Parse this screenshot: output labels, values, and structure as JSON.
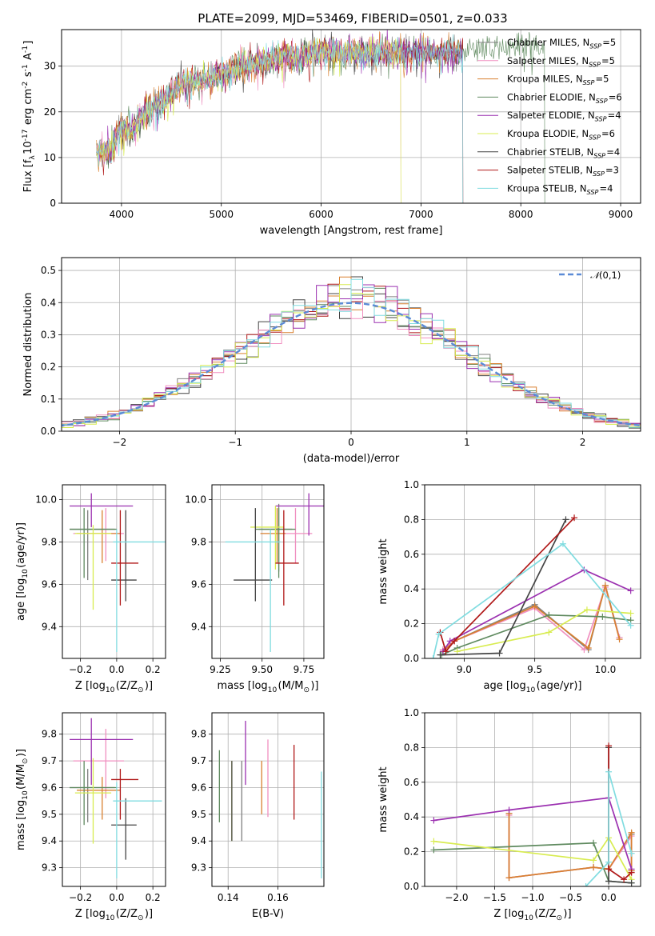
{
  "title": "PLATE=2099, MJD=53469, FIBERID=0501, z=0.033",
  "colors": [
    "#7f7f7f",
    "#e377c2",
    "#ff7f0e",
    "#2ca02c",
    "#9467bd",
    "#bcbd22",
    "#555555",
    "#d62728",
    "#17becf"
  ],
  "models": [
    {
      "name": "Chabrier MILES, N$_{SSP}$=5",
      "color": "#808080"
    },
    {
      "name": "Salpeter MILES, N$_{SSP}$=5",
      "color": "#f08fc0"
    },
    {
      "name": "Kroupa MILES, N$_{SSP}$=5",
      "color": "#d98030"
    },
    {
      "name": "Chabrier ELODIE, N$_{SSP}$=6",
      "color": "#5f8a5f"
    },
    {
      "name": "Salpeter ELODIE, N$_{SSP}$=4",
      "color": "#9b30b0"
    },
    {
      "name": "Kroupa ELODIE, N$_{SSP}$=6",
      "color": "#d8ec50"
    },
    {
      "name": "Chabrier STELIB, N$_{SSP}$=4",
      "color": "#444444"
    },
    {
      "name": "Salpeter STELIB, N$_{SSP}$=3",
      "color": "#b01818"
    },
    {
      "name": "Kroupa STELIB, N$_{SSP}$=4",
      "color": "#80dce0"
    }
  ],
  "chart_data": [
    {
      "id": "spectrum",
      "type": "line",
      "xlabel": "wavelength [Angstrom, rest frame]",
      "ylabel": "Flux [f$_\\lambda$10$^{-17}$ erg cm$^{-2}$ s$^{-1}$ A$^{-1}$]",
      "xlim": [
        3400,
        9200
      ],
      "ylim": [
        0,
        38
      ],
      "xticks": [
        4000,
        5000,
        6000,
        7000,
        8000,
        9000
      ],
      "yticks": [
        0,
        10,
        20,
        30
      ],
      "x": [
        3750,
        3900,
        4000,
        4100,
        4200,
        4300,
        4400,
        4500,
        4600,
        4800,
        5000,
        5200,
        5400,
        5600,
        5800,
        6000,
        6200,
        6400,
        6600,
        6800,
        7000,
        7200,
        7400,
        7600,
        7800,
        8000,
        8200,
        8400,
        8600,
        8800,
        9000
      ],
      "flux": [
        11,
        12,
        17,
        16,
        19,
        21,
        22,
        24,
        26,
        27,
        28,
        30,
        31,
        32,
        32,
        33,
        33,
        33,
        33,
        33,
        33,
        33,
        33,
        34,
        34,
        34,
        34,
        34,
        34,
        35,
        35
      ],
      "cut_wavelengths": [
        7420,
        6800,
        7420,
        8240,
        7420,
        6800,
        7420,
        7420,
        7420
      ]
    },
    {
      "id": "residuals",
      "type": "bar",
      "xlabel": "(data-model)/error",
      "ylabel": "Normed distribution",
      "xlim": [
        -2.5,
        2.5
      ],
      "ylim": [
        0,
        0.54
      ],
      "xticks": [
        -2,
        -1,
        0,
        1,
        2
      ],
      "yticks": [
        0.0,
        0.1,
        0.2,
        0.3,
        0.4,
        0.5
      ],
      "gaussian_label": "$\\mathcal{N}(0,1)$",
      "bin_width": 0.1
    },
    {
      "id": "age_vs_Z",
      "type": "scatter",
      "xlabel": "Z [log$_{10}$(Z/Z$_\\odot$)]",
      "ylabel": "age  [log$_{10}$(age/yr)]",
      "xlim": [
        -0.3,
        0.27
      ],
      "ylim": [
        9.25,
        10.07
      ],
      "xticks": [
        -0.2,
        0.0,
        0.2
      ],
      "yticks": [
        9.4,
        9.6,
        9.8,
        10.0
      ],
      "points": [
        {
          "x": -0.16,
          "y": 9.86,
          "xerr": [
            0.1,
            0.15
          ],
          "yerr": [
            0.24,
            0.09
          ]
        },
        {
          "x": -0.06,
          "y": 9.84,
          "xerr": [
            0.18,
            0.1
          ],
          "yerr": [
            0.13,
            0.12
          ]
        },
        {
          "x": -0.08,
          "y": 9.84,
          "xerr": [
            0.14,
            0.1
          ],
          "yerr": [
            0.14,
            0.11
          ]
        },
        {
          "x": -0.18,
          "y": 9.86,
          "xerr": [
            0.08,
            0.18
          ],
          "yerr": [
            0.23,
            0.1
          ]
        },
        {
          "x": -0.14,
          "y": 9.97,
          "xerr": [
            0.12,
            0.23
          ],
          "yerr": [
            0.1,
            0.06
          ]
        },
        {
          "x": -0.13,
          "y": 9.84,
          "xerr": [
            0.1,
            0.1
          ],
          "yerr": [
            0.36,
            0.04
          ]
        },
        {
          "x": 0.05,
          "y": 9.62,
          "xerr": [
            0.08,
            0.06
          ],
          "yerr": [
            0.1,
            0.33
          ]
        },
        {
          "x": 0.02,
          "y": 9.7,
          "xerr": [
            0.05,
            0.1
          ],
          "yerr": [
            0.2,
            0.25
          ]
        },
        {
          "x": 0.0,
          "y": 9.8,
          "xerr": [
            0.02,
            0.38
          ],
          "yerr": [
            0.52,
            0.06
          ]
        }
      ]
    },
    {
      "id": "age_vs_mass",
      "type": "scatter",
      "xlabel": "mass [log$_{10}$(M/M$_\\odot$)]",
      "ylabel": "",
      "xlim": [
        9.2,
        9.87
      ],
      "ylim": [
        9.25,
        10.07
      ],
      "xticks": [
        9.25,
        9.5,
        9.75
      ],
      "yticks": [
        9.4,
        9.6,
        9.8,
        10.0
      ],
      "points": [
        {
          "x": 9.6,
          "y": 9.86,
          "xerr": [
            0.12,
            0.08
          ],
          "yerr": [
            0.2,
            0.12
          ]
        },
        {
          "x": 9.7,
          "y": 9.84,
          "xerr": [
            0.12,
            0.1
          ],
          "yerr": [
            0.14,
            0.12
          ]
        },
        {
          "x": 9.59,
          "y": 9.84,
          "xerr": [
            0.1,
            0.05
          ],
          "yerr": [
            0.14,
            0.12
          ]
        },
        {
          "x": 9.6,
          "y": 9.86,
          "xerr": [
            0.14,
            0.1
          ],
          "yerr": [
            0.23,
            0.1
          ]
        },
        {
          "x": 9.78,
          "y": 9.97,
          "xerr": [
            0.2,
            0.09
          ],
          "yerr": [
            0.14,
            0.06
          ]
        },
        {
          "x": 9.58,
          "y": 9.87,
          "xerr": [
            0.15,
            0.05
          ],
          "yerr": [
            0.2,
            0.1
          ]
        },
        {
          "x": 9.46,
          "y": 9.62,
          "xerr": [
            0.13,
            0.1
          ],
          "yerr": [
            0.1,
            0.34
          ]
        },
        {
          "x": 9.63,
          "y": 9.7,
          "xerr": [
            0.05,
            0.09
          ],
          "yerr": [
            0.2,
            0.25
          ]
        },
        {
          "x": 9.55,
          "y": 9.8,
          "xerr": [
            0.27,
            0.06
          ],
          "yerr": [
            0.52,
            0.06
          ]
        }
      ]
    },
    {
      "id": "weight_vs_age",
      "type": "line",
      "xlabel": "age  [log$_{10}$(age/yr)]",
      "ylabel": "mass weight",
      "xlim": [
        8.72,
        10.25
      ],
      "ylim": [
        0,
        1.0
      ],
      "xticks": [
        9.0,
        9.5,
        10.0
      ],
      "yticks": [
        0.0,
        0.2,
        0.4,
        0.6,
        0.8,
        1.0
      ],
      "series": [
        {
          "x": [
            8.85,
            8.93,
            9.5,
            9.88,
            10.0,
            10.1
          ],
          "y": [
            0.05,
            0.1,
            0.31,
            0.05,
            0.42,
            0.12
          ]
        },
        {
          "x": [
            8.85,
            8.93,
            9.5,
            9.85,
            10.0,
            10.1
          ],
          "y": [
            0.05,
            0.1,
            0.29,
            0.05,
            0.41,
            0.12
          ]
        },
        {
          "x": [
            8.85,
            8.93,
            9.5,
            9.88,
            10.0,
            10.1
          ],
          "y": [
            0.04,
            0.1,
            0.3,
            0.06,
            0.42,
            0.11
          ]
        },
        {
          "x": [
            8.84,
            8.95,
            9.6,
            9.98,
            10.18
          ],
          "y": [
            0.02,
            0.06,
            0.25,
            0.24,
            0.22
          ]
        },
        {
          "x": [
            8.85,
            8.9,
            9.85,
            10.18
          ],
          "y": [
            0.04,
            0.1,
            0.51,
            0.39
          ]
        },
        {
          "x": [
            8.95,
            9.6,
            9.87,
            10.18
          ],
          "y": [
            0.04,
            0.15,
            0.28,
            0.26
          ]
        },
        {
          "x": [
            8.83,
            9.25,
            9.72
          ],
          "y": [
            0.02,
            0.03,
            0.8
          ]
        },
        {
          "x": [
            8.83,
            8.87,
            8.93,
            9.78
          ],
          "y": [
            0.15,
            0.04,
            0.1,
            0.81
          ]
        },
        {
          "x": [
            8.78,
            8.82,
            9.7,
            10.18
          ],
          "y": [
            0.0,
            0.14,
            0.66,
            0.19
          ]
        }
      ]
    },
    {
      "id": "mass_vs_Z",
      "type": "scatter",
      "xlabel": "Z [log$_{10}$(Z/Z$_\\odot$)]",
      "ylabel": "mass [log$_{10}$(M/M$_\\odot$)]",
      "xlim": [
        -0.3,
        0.27
      ],
      "ylim": [
        9.23,
        9.88
      ],
      "xticks": [
        -0.2,
        0.0,
        0.2
      ],
      "yticks": [
        9.3,
        9.4,
        9.5,
        9.6,
        9.7,
        9.8
      ],
      "points": [
        {
          "x": -0.16,
          "y": 9.6,
          "xerr": [
            0.1,
            0.15
          ],
          "yerr": [
            0.13,
            0.07
          ]
        },
        {
          "x": -0.06,
          "y": 9.7,
          "xerr": [
            0.18,
            0.1
          ],
          "yerr": [
            0.14,
            0.12
          ]
        },
        {
          "x": -0.08,
          "y": 9.59,
          "xerr": [
            0.14,
            0.1
          ],
          "yerr": [
            0.11,
            0.05
          ]
        },
        {
          "x": -0.18,
          "y": 9.6,
          "xerr": [
            0.08,
            0.18
          ],
          "yerr": [
            0.14,
            0.1
          ]
        },
        {
          "x": -0.14,
          "y": 9.78,
          "xerr": [
            0.12,
            0.23
          ],
          "yerr": [
            0.17,
            0.08
          ]
        },
        {
          "x": -0.13,
          "y": 9.58,
          "xerr": [
            0.1,
            0.1
          ],
          "yerr": [
            0.19,
            0.13
          ]
        },
        {
          "x": 0.05,
          "y": 9.46,
          "xerr": [
            0.08,
            0.06
          ],
          "yerr": [
            0.13,
            0.1
          ]
        },
        {
          "x": 0.02,
          "y": 9.63,
          "xerr": [
            0.05,
            0.1
          ],
          "yerr": [
            0.15,
            0.04
          ]
        },
        {
          "x": 0.0,
          "y": 9.55,
          "xerr": [
            0.02,
            0.25
          ],
          "yerr": [
            0.29,
            0.07
          ]
        }
      ]
    },
    {
      "id": "mass_vs_ebv",
      "type": "scatter",
      "xlabel": "E(B-V)",
      "ylabel": "",
      "xlim": [
        0.1335,
        0.1785
      ],
      "ylim": [
        9.23,
        9.88
      ],
      "xticks": [
        0.14,
        0.16
      ],
      "yticks": [
        9.3,
        9.4,
        9.5,
        9.6,
        9.7,
        9.8
      ],
      "points": [
        {
          "x": 0.1455,
          "y": 9.56,
          "yerr": [
            0.16,
            0.14
          ]
        },
        {
          "x": 0.156,
          "y": 9.65,
          "yerr": [
            0.16,
            0.13
          ]
        },
        {
          "x": 0.1535,
          "y": 9.62,
          "yerr": [
            0.12,
            0.08
          ]
        },
        {
          "x": 0.1365,
          "y": 9.6,
          "yerr": [
            0.13,
            0.14
          ]
        },
        {
          "x": 0.147,
          "y": 9.73,
          "yerr": [
            0.12,
            0.12
          ]
        },
        {
          "x": 0.1415,
          "y": 9.55,
          "yerr": [
            0.15,
            0.15
          ]
        },
        {
          "x": 0.1415,
          "y": 9.55,
          "yerr": [
            0.15,
            0.15
          ]
        },
        {
          "x": 0.1665,
          "y": 9.62,
          "yerr": [
            0.14,
            0.14
          ]
        },
        {
          "x": 0.1775,
          "y": 9.46,
          "yerr": [
            0.2,
            0.2
          ]
        }
      ]
    },
    {
      "id": "weight_vs_Z",
      "type": "line",
      "xlabel": "Z [log$_{10}$(Z/Z$_\\odot$)]",
      "ylabel": "mass weight",
      "xlim": [
        -2.42,
        0.42
      ],
      "ylim": [
        0,
        1.0
      ],
      "xticks": [
        -2.0,
        -1.5,
        -1.0,
        -0.5,
        0.0
      ],
      "yticks": [
        0.0,
        0.2,
        0.4,
        0.6,
        0.8,
        1.0
      ],
      "series": [
        {
          "x": [
            -1.31,
            -1.31,
            -0.2,
            0.0,
            0.3,
            0.3
          ],
          "y": [
            0.42,
            0.05,
            0.11,
            0.1,
            0.3,
            0.09
          ]
        },
        {
          "x": [
            -1.31,
            -1.31,
            -0.2,
            0.0,
            0.3,
            0.3
          ],
          "y": [
            0.41,
            0.05,
            0.11,
            0.1,
            0.29,
            0.08
          ]
        },
        {
          "x": [
            -1.31,
            -1.31,
            -0.2,
            0.0,
            0.3,
            0.3
          ],
          "y": [
            0.42,
            0.05,
            0.11,
            0.1,
            0.31,
            0.09
          ]
        },
        {
          "x": [
            -2.3,
            -0.2,
            0.0,
            0.3
          ],
          "y": [
            0.21,
            0.25,
            0.03,
            0.02
          ]
        },
        {
          "x": [
            -2.3,
            -1.31,
            0.0,
            0.3
          ],
          "y": [
            0.38,
            0.44,
            0.51,
            0.1
          ]
        },
        {
          "x": [
            -2.3,
            -0.2,
            0.0,
            0.3
          ],
          "y": [
            0.26,
            0.15,
            0.28,
            0.04
          ]
        },
        {
          "x": [
            0.0,
            0.0,
            0.3
          ],
          "y": [
            0.8,
            0.03,
            0.02
          ]
        },
        {
          "x": [
            0.0,
            0.0,
            0.2,
            0.3
          ],
          "y": [
            0.81,
            0.1,
            0.04,
            0.08
          ]
        },
        {
          "x": [
            -0.3,
            0.0,
            0.0,
            0.3
          ],
          "y": [
            0.0,
            0.14,
            0.66,
            0.19
          ]
        }
      ]
    }
  ]
}
